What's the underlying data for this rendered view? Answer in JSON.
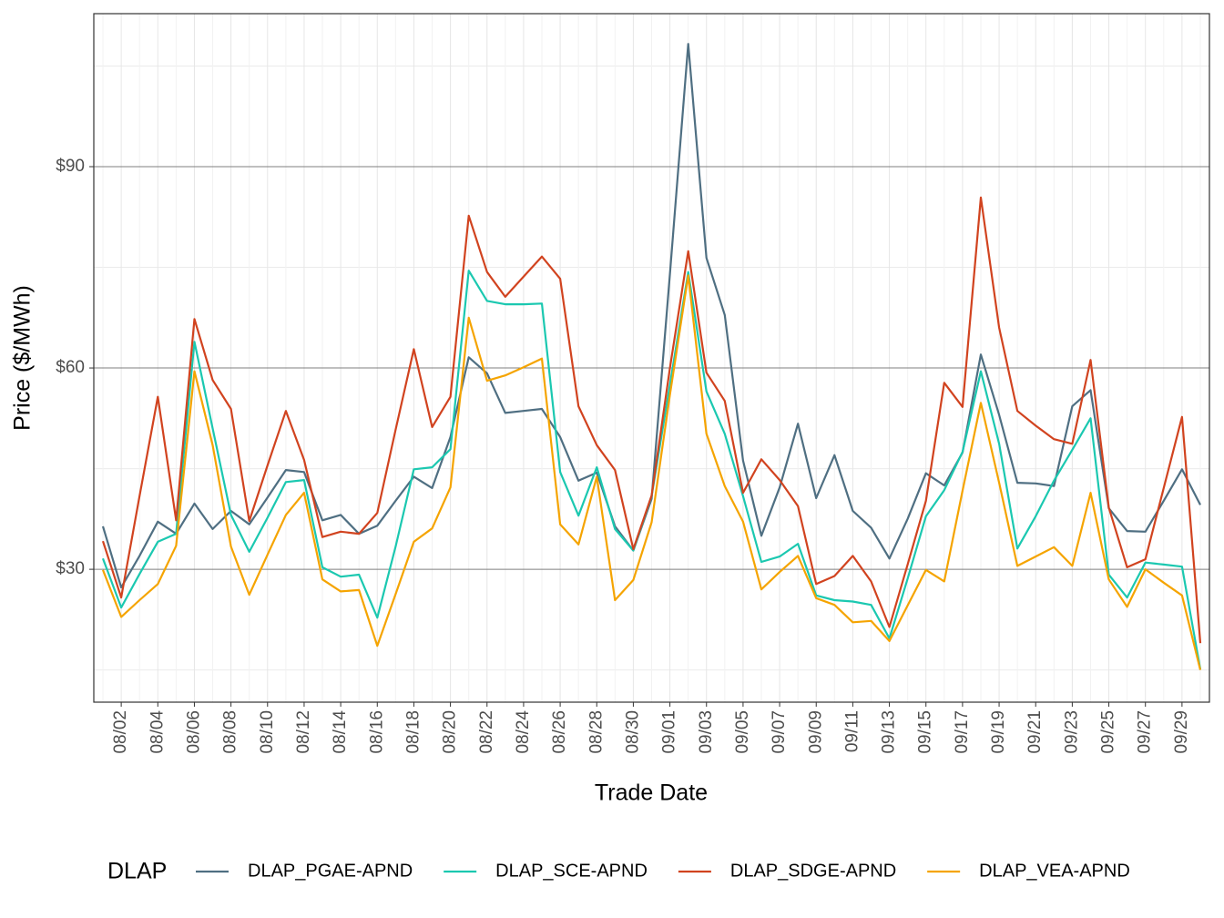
{
  "chart_data": {
    "type": "line",
    "x_label": "Trade Date",
    "y_label": "Price ($/MWh)",
    "legend_title": "DLAP",
    "legend_position": "bottom",
    "grid": true,
    "categories": [
      null,
      "08/02",
      null,
      "08/04",
      null,
      "08/06",
      null,
      "08/08",
      null,
      "08/10",
      null,
      "08/12",
      null,
      "08/14",
      null,
      "08/16",
      null,
      "08/18",
      null,
      "08/20",
      null,
      "08/22",
      null,
      "08/24",
      null,
      "08/26",
      null,
      "08/28",
      null,
      "08/30",
      null,
      "09/01",
      null,
      "09/03",
      null,
      "09/05",
      null,
      "09/07",
      null,
      "09/09",
      null,
      "09/11",
      null,
      "09/13",
      null,
      "09/15",
      null,
      "09/17",
      null,
      "09/19",
      null,
      "09/21",
      null,
      "09/23",
      null,
      "09/25",
      null,
      "09/27",
      null,
      "09/29",
      null
    ],
    "ylim": [
      10.2,
      112.8
    ],
    "yticks": [
      {
        "value": 30,
        "label": "$30"
      },
      {
        "value": 60,
        "label": "$60"
      },
      {
        "value": 90,
        "label": "$90"
      }
    ],
    "minor_yticks": [
      15,
      45,
      75,
      105
    ],
    "series": [
      {
        "name": "DLAP_PGAE-APND",
        "color": "#4f6f82",
        "values": [
          36.4,
          27.3,
          32,
          37.1,
          35.3,
          39.8,
          36,
          38.7,
          36.7,
          40.7,
          44.8,
          44.5,
          37.3,
          38.1,
          35.3,
          36.5,
          40.2,
          43.8,
          42.1,
          49.7,
          61.6,
          59.2,
          53.3,
          53.6,
          53.9,
          49.7,
          43.2,
          44.4,
          36.4,
          32.8,
          40.5,
          74,
          108.3,
          76.4,
          67.9,
          46.2,
          35,
          42.2,
          51.7,
          40.6,
          47,
          38.7,
          36.2,
          31.6,
          37.5,
          44.3,
          42.5,
          47.4,
          62,
          53,
          42.9,
          42.8,
          42.4,
          54.3,
          56.7,
          39.1,
          35.7,
          35.6,
          40.2,
          44.9,
          39.6
        ]
      },
      {
        "name": "DLAP_SCE-APND",
        "color": "#1bc8b0",
        "values": [
          31.6,
          24.3,
          29.3,
          34.1,
          35.3,
          63.9,
          51,
          38.1,
          32.6,
          37.7,
          43,
          43.3,
          30.3,
          28.9,
          29.2,
          22.8,
          33.4,
          44.9,
          45.2,
          47.9,
          74.5,
          70,
          69.5,
          69.5,
          69.6,
          44.5,
          38,
          45.2,
          36,
          32.8,
          40.9,
          57.5,
          74.3,
          56.5,
          50.2,
          40.9,
          31.1,
          31.9,
          33.8,
          26.1,
          25.4,
          25.2,
          24.7,
          19.7,
          28.6,
          37.9,
          41.8,
          47.5,
          59.5,
          48.7,
          33.1,
          37.9,
          43.2,
          47.8,
          52.5,
          29.2,
          25.8,
          31,
          30.7,
          30.4,
          15.1
        ]
      },
      {
        "name": "DLAP_SDGE-APND",
        "color": "#d1431f",
        "values": [
          34.2,
          25.8,
          40.9,
          55.7,
          37.3,
          67.3,
          58.2,
          53.9,
          37.2,
          45.5,
          53.6,
          46.3,
          34.8,
          35.6,
          35.3,
          38.4,
          50.8,
          62.8,
          51.2,
          55.7,
          82.7,
          74.3,
          70.6,
          73.6,
          76.6,
          73.3,
          54.3,
          48.5,
          44.8,
          33,
          41,
          60,
          77.4,
          59.3,
          55.1,
          41.4,
          46.4,
          43.3,
          39.4,
          27.8,
          29,
          32,
          28.2,
          21.4,
          30.7,
          40.2,
          57.8,
          54.2,
          85.4,
          66,
          53.6,
          51.4,
          49.4,
          48.7,
          61.2,
          39.2,
          30.3,
          31.5,
          42.1,
          52.7,
          19
        ]
      },
      {
        "name": "DLAP_VEA-APND",
        "color": "#f5a400",
        "values": [
          29.9,
          22.9,
          25.4,
          27.8,
          33.5,
          59.5,
          48.5,
          33.4,
          26.2,
          32.2,
          38.1,
          41.4,
          28.5,
          26.7,
          26.9,
          18.6,
          26.3,
          34.1,
          36.1,
          42.2,
          67.5,
          58.1,
          58.9,
          60.1,
          61.4,
          36.7,
          33.7,
          43.8,
          25.4,
          28.4,
          37,
          56,
          73.8,
          50.2,
          42.4,
          37.1,
          27,
          29.6,
          32,
          25.7,
          24.7,
          22.1,
          22.3,
          19.3,
          24.6,
          29.9,
          28.2,
          41.7,
          54.8,
          42.9,
          30.5,
          31.9,
          33.3,
          30.5,
          41.4,
          28.5,
          24.4,
          30,
          28,
          26.1,
          15
        ]
      }
    ]
  }
}
